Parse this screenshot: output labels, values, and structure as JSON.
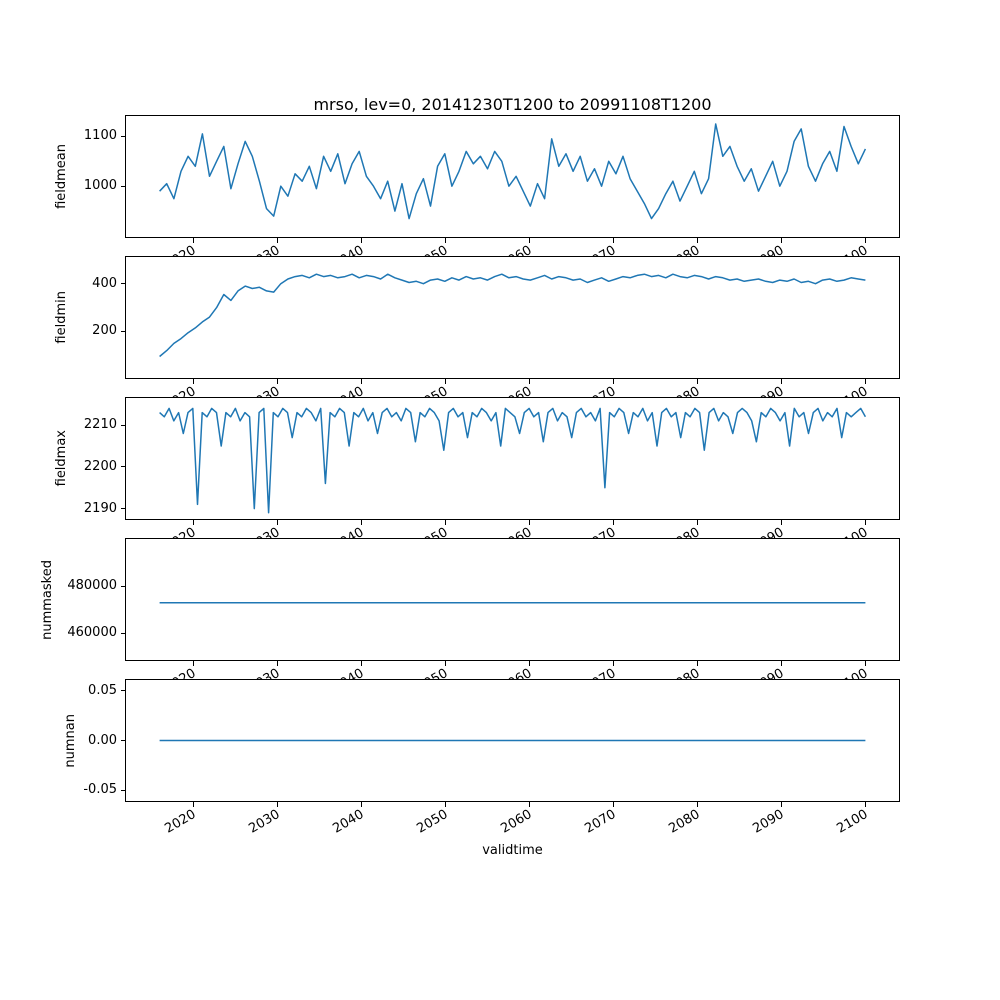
{
  "title": "mrso, lev=0, 20141230T1200 to 20991108T1200",
  "xlabel": "validtime",
  "line_color": "#1f77b4",
  "xticks": [
    "2020",
    "2030",
    "2040",
    "2050",
    "2060",
    "2070",
    "2080",
    "2090",
    "2100"
  ],
  "chart_data": [
    {
      "type": "line",
      "ylabel": "fieldmean",
      "x_start": 2016,
      "x_end": 2100,
      "xlim": [
        2012,
        2104
      ],
      "ylim": [
        898,
        1141
      ],
      "yticks": [
        "1000",
        "1100"
      ],
      "values": [
        990,
        1005,
        975,
        1030,
        1060,
        1040,
        1105,
        1020,
        1050,
        1080,
        995,
        1045,
        1090,
        1060,
        1010,
        955,
        940,
        1000,
        980,
        1025,
        1010,
        1040,
        995,
        1060,
        1030,
        1065,
        1005,
        1045,
        1070,
        1020,
        1000,
        975,
        1010,
        950,
        1005,
        935,
        985,
        1015,
        960,
        1040,
        1065,
        1000,
        1030,
        1070,
        1045,
        1060,
        1035,
        1070,
        1050,
        1000,
        1020,
        990,
        960,
        1005,
        975,
        1095,
        1040,
        1065,
        1030,
        1060,
        1010,
        1035,
        1000,
        1050,
        1025,
        1060,
        1015,
        990,
        965,
        935,
        955,
        985,
        1010,
        970,
        1000,
        1030,
        985,
        1015,
        1125,
        1060,
        1080,
        1040,
        1010,
        1035,
        990,
        1020,
        1050,
        1000,
        1030,
        1090,
        1115,
        1040,
        1010,
        1045,
        1070,
        1030,
        1120,
        1080,
        1045,
        1075
      ]
    },
    {
      "type": "line",
      "ylabel": "fieldmin",
      "x_start": 2016,
      "x_end": 2100,
      "xlim": [
        2012,
        2104
      ],
      "ylim": [
        5,
        512
      ],
      "yticks": [
        "200",
        "400"
      ],
      "values": [
        95,
        120,
        150,
        170,
        195,
        215,
        240,
        260,
        300,
        355,
        330,
        370,
        390,
        380,
        385,
        370,
        365,
        400,
        420,
        430,
        435,
        425,
        440,
        430,
        435,
        425,
        430,
        440,
        425,
        435,
        430,
        420,
        440,
        425,
        415,
        405,
        410,
        400,
        415,
        420,
        410,
        425,
        415,
        430,
        420,
        425,
        415,
        430,
        440,
        425,
        430,
        420,
        415,
        425,
        435,
        420,
        430,
        425,
        415,
        420,
        405,
        415,
        425,
        410,
        420,
        430,
        425,
        435,
        440,
        430,
        435,
        425,
        440,
        430,
        425,
        435,
        430,
        420,
        430,
        425,
        415,
        420,
        410,
        415,
        420,
        410,
        405,
        415,
        410,
        420,
        405,
        410,
        400,
        415,
        420,
        410,
        415,
        425,
        420,
        415
      ]
    },
    {
      "type": "line",
      "ylabel": "fieldmax",
      "x_start": 2016,
      "x_end": 2100,
      "xlim": [
        2012,
        2104
      ],
      "ylim": [
        2187.5,
        2216.5
      ],
      "yticks": [
        "2190",
        "2200",
        "2210"
      ],
      "values": [
        2213,
        2212,
        2214,
        2211,
        2213,
        2208,
        2213,
        2214,
        2191,
        2213,
        2212,
        2214,
        2213,
        2205,
        2213,
        2212,
        2214,
        2211,
        2213,
        2212,
        2190,
        2213,
        2214,
        2189,
        2213,
        2212,
        2214,
        2213,
        2207,
        2213,
        2212,
        2214,
        2213,
        2211,
        2214,
        2196,
        2213,
        2212,
        2214,
        2213,
        2205,
        2213,
        2212,
        2214,
        2211,
        2213,
        2208,
        2213,
        2214,
        2212,
        2213,
        2211,
        2214,
        2213,
        2206,
        2213,
        2212,
        2214,
        2213,
        2211,
        2204,
        2213,
        2214,
        2212,
        2213,
        2207,
        2213,
        2212,
        2214,
        2213,
        2211,
        2213,
        2205,
        2214,
        2213,
        2212,
        2208,
        2213,
        2214,
        2212,
        2213,
        2206,
        2213,
        2214,
        2211,
        2213,
        2212,
        2207,
        2213,
        2214,
        2212,
        2213,
        2211,
        2214,
        2195,
        2213,
        2212,
        2214,
        2213,
        2208,
        2213,
        2212,
        2214,
        2211,
        2213,
        2205,
        2213,
        2214,
        2212,
        2213,
        2207,
        2213,
        2212,
        2214,
        2213,
        2204,
        2213,
        2214,
        2211,
        2213,
        2212,
        2208,
        2213,
        2214,
        2213,
        2211,
        2206,
        2213,
        2212,
        2214,
        2213,
        2211,
        2213,
        2205,
        2214,
        2212,
        2213,
        2208,
        2213,
        2214,
        2211,
        2213,
        2212,
        2214,
        2207,
        2213,
        2212,
        2213,
        2214,
        2212
      ]
    },
    {
      "type": "line",
      "ylabel": "nummasked",
      "x_start": 2016,
      "x_end": 2100,
      "xlim": [
        2012,
        2104
      ],
      "ylim": [
        448700,
        500000
      ],
      "yticks": [
        "460000",
        "480000"
      ],
      "values": [
        473000,
        473000
      ]
    },
    {
      "type": "line",
      "ylabel": "numnan",
      "x_start": 2016,
      "x_end": 2100,
      "xlim": [
        2012,
        2104
      ],
      "ylim": [
        -0.061,
        0.061
      ],
      "yticks": [
        "-0.05",
        "0.00",
        "0.05"
      ],
      "values": [
        0,
        0
      ]
    }
  ]
}
